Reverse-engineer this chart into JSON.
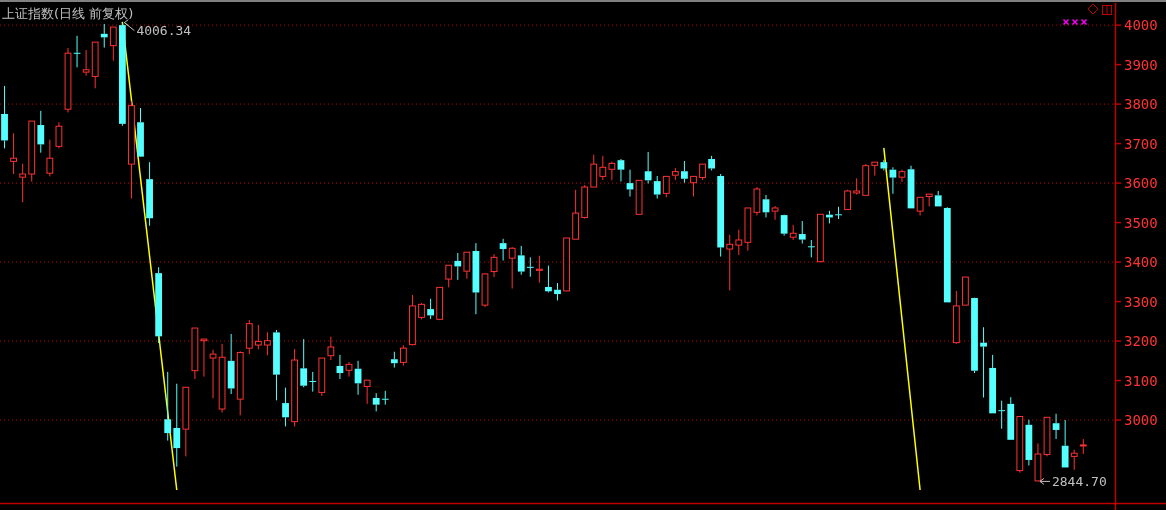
{
  "chart_data": {
    "type": "candlestick",
    "title": "上证指数(日线 前复权)",
    "categories": [
      null,
      null,
      null,
      null,
      null,
      null,
      null,
      null,
      null,
      null,
      null,
      null,
      null,
      null,
      null,
      null,
      null,
      null,
      null,
      null,
      null,
      null,
      null,
      null,
      null,
      null,
      null,
      null,
      null,
      null,
      null,
      null,
      null,
      null,
      null,
      null,
      null,
      null,
      null,
      null,
      null,
      null,
      null,
      null,
      null,
      null,
      null,
      null,
      null,
      null,
      null,
      null,
      null,
      null,
      null,
      null,
      null,
      null,
      null,
      null,
      null,
      null,
      null,
      null,
      null,
      null,
      null,
      null,
      null,
      null,
      null,
      null,
      null,
      null,
      null,
      null,
      null,
      null,
      null,
      null,
      null,
      null,
      null,
      null,
      null,
      null,
      null,
      null,
      null,
      null,
      null,
      null,
      null,
      null,
      null,
      null,
      null,
      null,
      null,
      null,
      null,
      null,
      null,
      null,
      null,
      null,
      null,
      null,
      null,
      null,
      null,
      null,
      null,
      null,
      null,
      null,
      null,
      null,
      null,
      null,
      null,
      null,
      null
    ],
    "ohlc": [
      [
        3775,
        3846,
        3688,
        3708
      ],
      [
        3655,
        3726,
        3623,
        3663
      ],
      [
        3615,
        3649,
        3552,
        3623
      ],
      [
        3623,
        3757,
        3604,
        3757
      ],
      [
        3747,
        3783,
        3677,
        3698
      ],
      [
        3625,
        3710,
        3617,
        3663
      ],
      [
        3693,
        3754,
        3688,
        3744
      ],
      [
        3787,
        3942,
        3779,
        3929
      ],
      [
        3930,
        3973,
        3893,
        3929
      ],
      [
        3881,
        3937,
        3872,
        3887
      ],
      [
        3870,
        3957,
        3840,
        3957
      ],
      [
        3978,
        4003,
        3943,
        3969
      ],
      [
        3948,
        3995,
        3910,
        3995
      ],
      [
        4000,
        4006.34,
        3745,
        3750
      ],
      [
        3648,
        3807,
        3561,
        3796
      ],
      [
        3754,
        3790,
        3666,
        3667
      ],
      [
        3610,
        3653,
        3492,
        3511
      ],
      [
        3372,
        3387,
        3195,
        3212
      ],
      [
        3002,
        3122,
        2948,
        2967
      ],
      [
        2980,
        3092,
        2882,
        2929
      ],
      [
        2977,
        3083,
        2908,
        3083
      ],
      [
        3125,
        3233,
        3104,
        3233
      ],
      [
        3201,
        3206,
        3110,
        3205
      ],
      [
        3157,
        3178,
        3055,
        3167
      ],
      [
        3028,
        3193,
        3019,
        3159
      ],
      [
        3150,
        3218,
        3066,
        3080
      ],
      [
        3053,
        3174,
        3012,
        3171
      ],
      [
        3182,
        3253,
        3167,
        3244
      ],
      [
        3190,
        3241,
        3179,
        3199
      ],
      [
        3190,
        3222,
        3164,
        3201
      ],
      [
        3222,
        3228,
        3050,
        3115
      ],
      [
        3043,
        3082,
        2984,
        3007
      ],
      [
        2996,
        3180,
        2984,
        3152
      ],
      [
        3131,
        3205,
        3083,
        3087
      ],
      [
        3099,
        3122,
        3072,
        3097
      ],
      [
        3070,
        3157,
        3061,
        3157
      ],
      [
        3163,
        3211,
        3152,
        3185
      ],
      [
        3137,
        3165,
        3104,
        3119
      ],
      [
        3126,
        3147,
        3110,
        3141
      ],
      [
        3130,
        3150,
        3064,
        3093
      ],
      [
        3085,
        3101,
        3041,
        3101
      ],
      [
        3056,
        3068,
        3022,
        3039
      ],
      [
        3054,
        3074,
        3039,
        3053
      ],
      [
        3154,
        3173,
        3133,
        3144
      ],
      [
        3146,
        3189,
        3138,
        3182
      ],
      [
        3191,
        3317,
        3189,
        3289
      ],
      [
        3260,
        3296,
        3255,
        3293
      ],
      [
        3281,
        3307,
        3256,
        3265
      ],
      [
        3255,
        3336,
        3253,
        3336
      ],
      [
        3357,
        3392,
        3336,
        3392
      ],
      [
        3403,
        3423,
        3355,
        3389
      ],
      [
        3377,
        3425,
        3358,
        3425
      ],
      [
        3428,
        3448,
        3268,
        3323
      ],
      [
        3291,
        3372,
        3286,
        3370
      ],
      [
        3376,
        3420,
        3362,
        3412
      ],
      [
        3448,
        3459,
        3404,
        3433
      ],
      [
        3410,
        3438,
        3333,
        3435
      ],
      [
        3417,
        3441,
        3368,
        3376
      ],
      [
        3388,
        3412,
        3363,
        3387
      ],
      [
        3379,
        3416,
        3348,
        3382
      ],
      [
        3337,
        3391,
        3323,
        3326
      ],
      [
        3330,
        3347,
        3303,
        3319
      ],
      [
        3327,
        3461,
        3326,
        3461
      ],
      [
        3458,
        3583,
        3458,
        3524
      ],
      [
        3513,
        3595,
        3510,
        3590
      ],
      [
        3590,
        3672,
        3590,
        3648
      ],
      [
        3617,
        3669,
        3608,
        3640
      ],
      [
        3635,
        3654,
        3607,
        3650
      ],
      [
        3658,
        3661,
        3604,
        3634
      ],
      [
        3600,
        3634,
        3566,
        3584
      ],
      [
        3521,
        3607,
        3521,
        3607
      ],
      [
        3630,
        3679,
        3599,
        3607
      ],
      [
        3605,
        3618,
        3561,
        3571
      ],
      [
        3574,
        3617,
        3564,
        3617
      ],
      [
        3620,
        3638,
        3608,
        3629
      ],
      [
        3630,
        3656,
        3601,
        3611
      ],
      [
        3601,
        3617,
        3566,
        3617
      ],
      [
        3614,
        3648,
        3608,
        3648
      ],
      [
        3661,
        3669,
        3632,
        3637
      ],
      [
        3618,
        3623,
        3414,
        3437
      ],
      [
        3433,
        3469,
        3328,
        3445
      ],
      [
        3443,
        3482,
        3418,
        3456
      ],
      [
        3450,
        3537,
        3429,
        3537
      ],
      [
        3526,
        3590,
        3518,
        3585
      ],
      [
        3559,
        3570,
        3513,
        3526
      ],
      [
        3529,
        3542,
        3507,
        3537
      ],
      [
        3519,
        3520,
        3467,
        3472
      ],
      [
        3463,
        3494,
        3456,
        3473
      ],
      [
        3471,
        3504,
        3447,
        3457
      ],
      [
        3440,
        3456,
        3412,
        3439
      ],
      [
        3401,
        3521,
        3400,
        3521
      ],
      [
        3520,
        3530,
        3498,
        3513
      ],
      [
        3521,
        3540,
        3509,
        3520
      ],
      [
        3533,
        3583,
        3533,
        3580
      ],
      [
        3575,
        3612,
        3571,
        3580
      ],
      [
        3569,
        3648,
        3569,
        3644
      ],
      [
        3645,
        3653,
        3619,
        3653
      ],
      [
        3653,
        3659,
        3632,
        3637
      ],
      [
        3634,
        3640,
        3573,
        3614
      ],
      [
        3615,
        3634,
        3603,
        3629
      ],
      [
        3635,
        3644,
        3536,
        3536
      ],
      [
        3529,
        3564,
        3518,
        3564
      ],
      [
        3566,
        3573,
        3541,
        3572
      ],
      [
        3569,
        3580,
        3541,
        3541
      ],
      [
        3537,
        3539,
        3298,
        3298
      ],
      [
        3196,
        3327,
        3193,
        3289
      ],
      [
        3291,
        3362,
        3291,
        3362
      ],
      [
        3309,
        3310,
        3119,
        3125
      ],
      [
        3196,
        3235,
        3057,
        3186
      ],
      [
        3132,
        3165,
        3017,
        3017
      ],
      [
        3025,
        3049,
        2978,
        3024
      ],
      [
        3041,
        3058,
        2950,
        2950
      ],
      [
        2872,
        3009,
        2867,
        3009
      ],
      [
        2988,
        3001,
        2885,
        2899
      ],
      [
        2846,
        2941,
        2844.7,
        2914
      ],
      [
        2913,
        3007,
        2908,
        3007
      ],
      [
        2992,
        3016,
        2952,
        2975
      ],
      [
        2935,
        3000,
        2880,
        2880
      ],
      [
        2908,
        2925,
        2874,
        2916
      ],
      [
        2936,
        2952,
        2914,
        2937
      ],
      null,
      null,
      null
    ],
    "series": [
      {
        "type": "line",
        "color": "#ffff00",
        "values": [
          null,
          null,
          null,
          null,
          null,
          null,
          null,
          null,
          null,
          null,
          null,
          null,
          null,
          4008,
          null,
          null,
          null,
          null,
          null,
          2823,
          null,
          null,
          null,
          null,
          null,
          null,
          null,
          null,
          null,
          null,
          null,
          null,
          null,
          null,
          null,
          null,
          null,
          null,
          null,
          null,
          null,
          null,
          null,
          null,
          null,
          null,
          null,
          null,
          null,
          null,
          null,
          null,
          null,
          null,
          null,
          null,
          null,
          null,
          null,
          null,
          null,
          null,
          null,
          null,
          null,
          null,
          null,
          null,
          null,
          null,
          null,
          null,
          null,
          null,
          null,
          null,
          null,
          null,
          null,
          null,
          null,
          null,
          null,
          null,
          null,
          null,
          null,
          null,
          null,
          null,
          null,
          null,
          null,
          null,
          null,
          null,
          null,
          null,
          null,
          null,
          null,
          null,
          null,
          null,
          null,
          null,
          null,
          null,
          null,
          null,
          null,
          null,
          null,
          null,
          null,
          null,
          null,
          null,
          null,
          null,
          null,
          null,
          null
        ]
      },
      {
        "type": "line",
        "color": "#ffff00",
        "values": [
          null,
          null,
          null,
          null,
          null,
          null,
          null,
          null,
          null,
          null,
          null,
          null,
          null,
          null,
          null,
          null,
          null,
          null,
          null,
          null,
          null,
          null,
          null,
          null,
          null,
          null,
          null,
          null,
          null,
          null,
          null,
          null,
          null,
          null,
          null,
          null,
          null,
          null,
          null,
          null,
          null,
          null,
          null,
          null,
          null,
          null,
          null,
          null,
          null,
          null,
          null,
          null,
          null,
          null,
          null,
          null,
          null,
          null,
          null,
          null,
          null,
          null,
          null,
          null,
          null,
          null,
          null,
          null,
          null,
          null,
          null,
          null,
          null,
          null,
          null,
          null,
          null,
          null,
          null,
          null,
          null,
          null,
          null,
          null,
          null,
          null,
          null,
          null,
          null,
          null,
          null,
          null,
          null,
          null,
          null,
          null,
          null,
          3689,
          null,
          null,
          null,
          2823,
          null,
          null,
          null,
          null,
          null,
          null,
          null,
          null,
          null,
          null,
          null,
          null,
          null,
          null,
          null,
          null,
          null,
          null,
          null,
          null,
          null
        ]
      }
    ],
    "ylim": [
      2790,
      4056
    ],
    "yticks": [
      3000,
      3100,
      3200,
      3300,
      3400,
      3500,
      3600,
      3700,
      3800,
      3900,
      4000
    ],
    "ref_lines": [
      {
        "axis": "y",
        "value": 3000,
        "color": "#c00000",
        "line_style": "dotted"
      },
      {
        "axis": "y",
        "value": 3200,
        "color": "#c00000",
        "line_style": "dotted"
      },
      {
        "axis": "y",
        "value": 3400,
        "color": "#c00000",
        "line_style": "dotted"
      },
      {
        "axis": "y",
        "value": 3600,
        "color": "#c00000",
        "line_style": "dotted"
      },
      {
        "axis": "y",
        "value": 3800,
        "color": "#c00000",
        "line_style": "dotted"
      },
      {
        "axis": "y",
        "value": 4000,
        "color": "#c00000",
        "line_style": "dotted"
      }
    ],
    "annotations": [
      "4006.34",
      "2844.70"
    ],
    "tick_labels": "y"
  }
}
